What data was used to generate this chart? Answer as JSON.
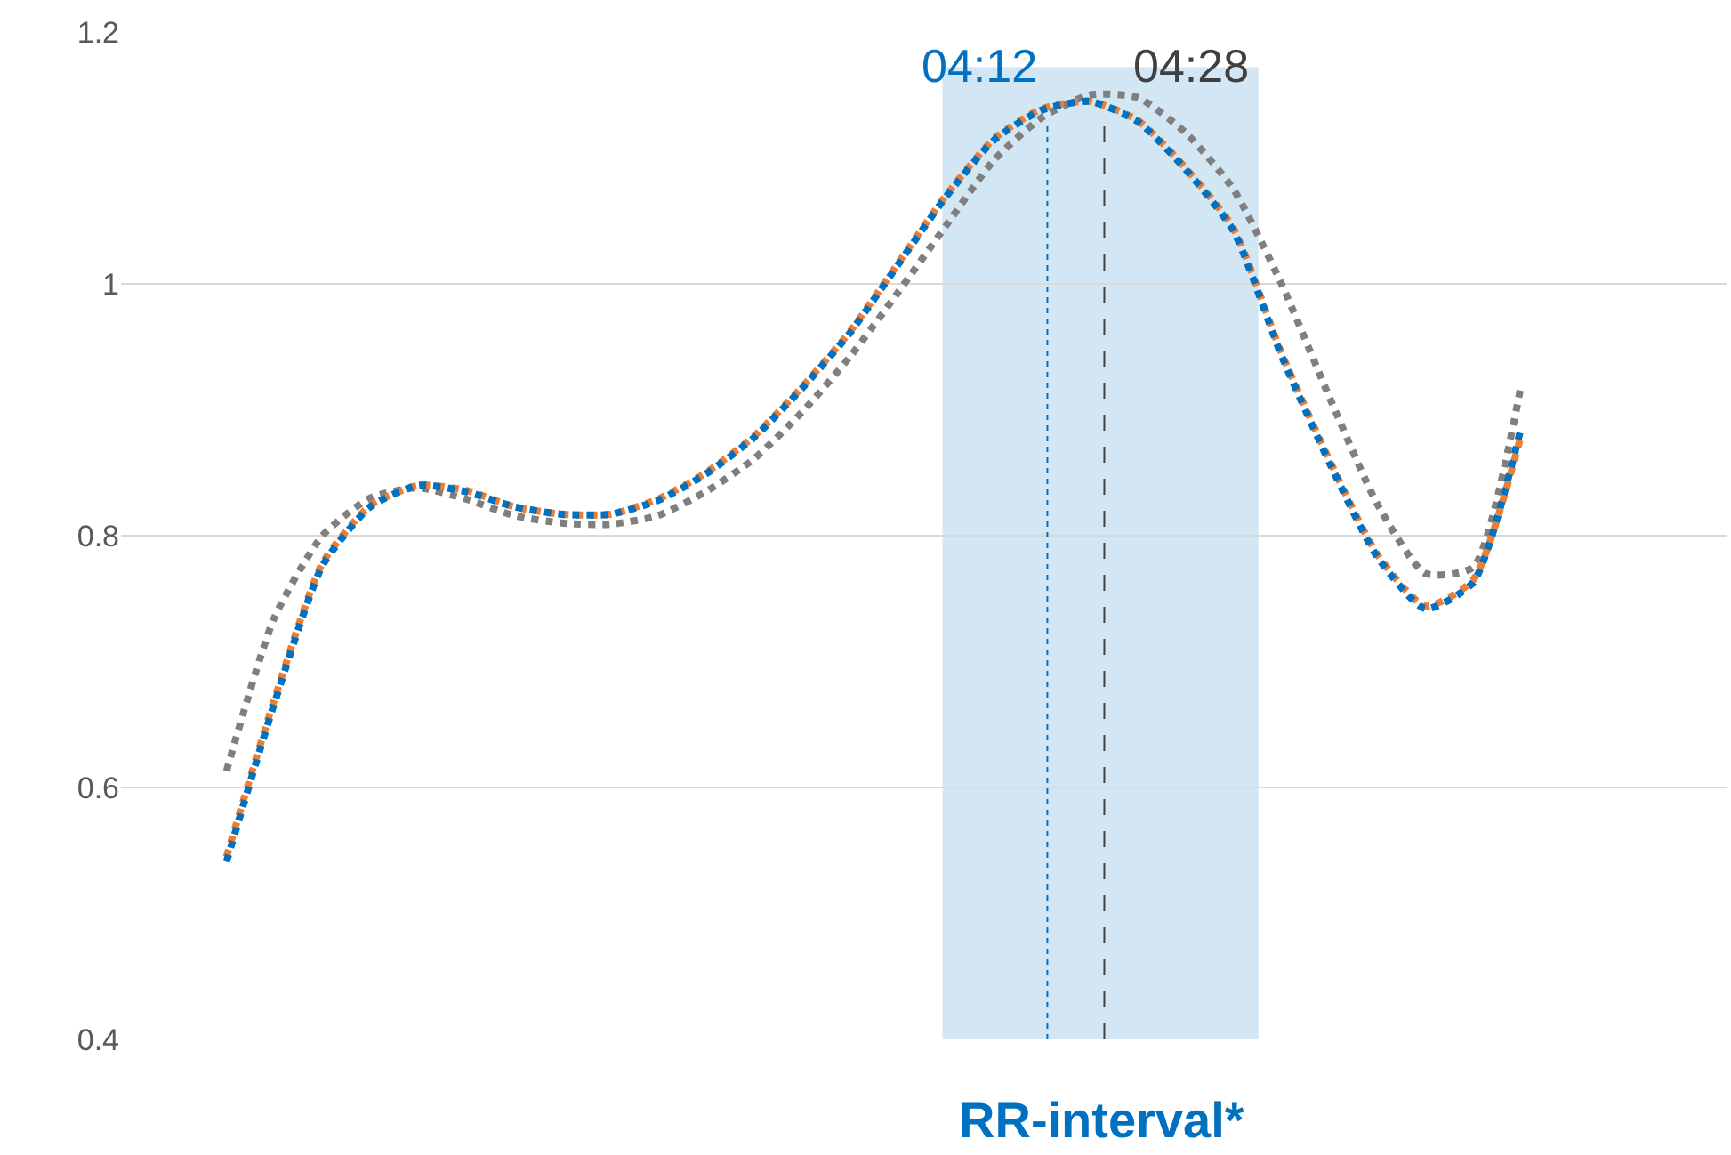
{
  "chart_data": {
    "type": "line",
    "xlabel": "RR-interval*",
    "categories": [
      null,
      null,
      null,
      null,
      null,
      null,
      null,
      null,
      null,
      null,
      null,
      null,
      null,
      null,
      null,
      null,
      null,
      null,
      null,
      null,
      null,
      null,
      null,
      null,
      null,
      null,
      null,
      null
    ],
    "series": [
      {
        "color": "#7f7f7f",
        "values": [
          0.613,
          0.735,
          0.8,
          0.83,
          0.838,
          0.829,
          0.816,
          0.81,
          0.809,
          0.816,
          0.835,
          0.861,
          0.898,
          0.942,
          0.993,
          1.046,
          1.098,
          1.132,
          1.15,
          1.148,
          1.12,
          1.075,
          1.0,
          0.91,
          0.825,
          0.77,
          0.775,
          0.92
        ]
      },
      {
        "color": "#ed7d31",
        "values": [
          0.545,
          0.67,
          0.778,
          0.824,
          0.84,
          0.836,
          0.823,
          0.817,
          0.817,
          0.829,
          0.85,
          0.879,
          0.918,
          0.962,
          1.016,
          1.07,
          1.115,
          1.139,
          1.145,
          1.13,
          1.092,
          1.044,
          0.945,
          0.86,
          0.785,
          0.744,
          0.765,
          0.88
        ]
      },
      {
        "color": "#0070c0",
        "values": [
          0.541,
          0.667,
          0.776,
          0.823,
          0.84,
          0.835,
          0.823,
          0.817,
          0.817,
          0.828,
          0.849,
          0.878,
          0.917,
          0.961,
          1.015,
          1.069,
          1.114,
          1.138,
          1.145,
          1.129,
          1.091,
          1.042,
          0.943,
          0.858,
          0.783,
          0.742,
          0.763,
          0.886
        ]
      }
    ],
    "ylim": [
      0.4,
      1.2
    ],
    "yticks": [
      0.4,
      0.6,
      0.8,
      1,
      1.2
    ],
    "grid": "y",
    "marker": "none",
    "line_style": "dotted",
    "annotations": [
      "04:12",
      "04:28"
    ]
  }
}
